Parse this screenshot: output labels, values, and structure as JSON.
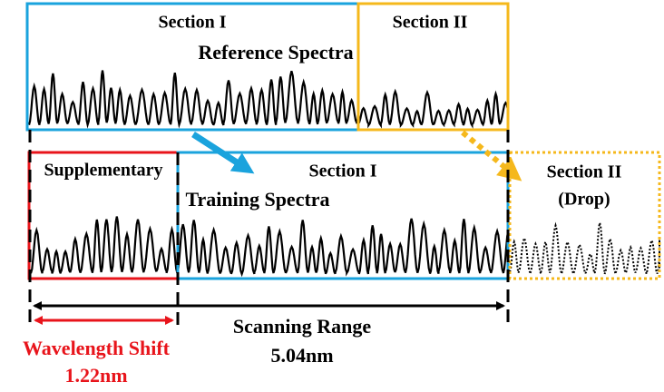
{
  "reference": {
    "section1": "Section I",
    "title": "Reference Spectra",
    "section2": "Section II"
  },
  "training": {
    "supplementary": "Supplementary",
    "section1": "Section I",
    "title": "Training Spectra",
    "section2": "Section II",
    "drop": "(Drop)"
  },
  "scanning_range": {
    "label": "Scanning Range",
    "value": "5.04nm"
  },
  "wavelength_shift": {
    "label": "Wavelength Shift",
    "value": "1.22nm"
  }
}
